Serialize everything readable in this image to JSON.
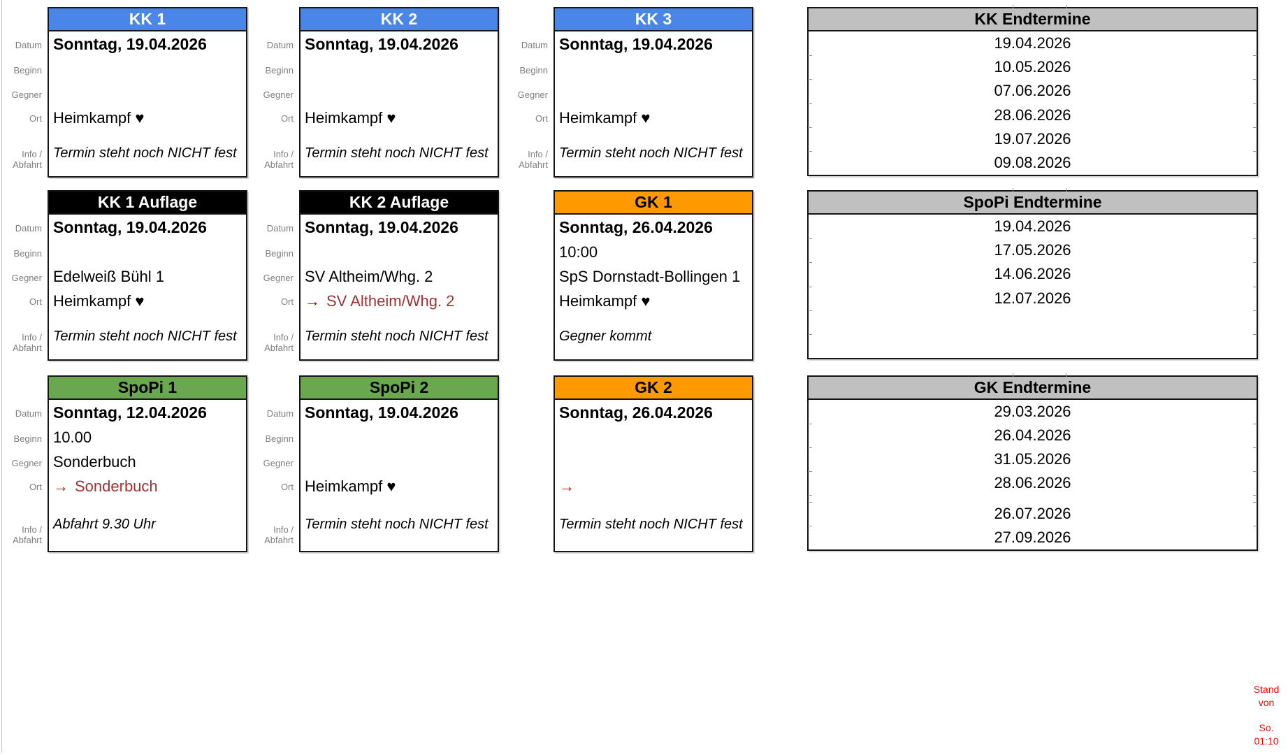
{
  "labels": {
    "datum": "Datum",
    "beginn": "Beginn",
    "gegner": "Gegner",
    "ort": "Ort",
    "info_line1": "Info /",
    "info_line2": "Abfahrt"
  },
  "cards": [
    {
      "title": "KK 1",
      "datum": "Sonntag, 19.04.2026",
      "beginn": "",
      "gegner": "",
      "ort_arrow": "",
      "ort": "Heimkampf ♥",
      "info": "Termin steht noch NICHT fest"
    },
    {
      "title": "KK 2",
      "datum": "Sonntag, 19.04.2026",
      "beginn": "",
      "gegner": "",
      "ort_arrow": "",
      "ort": "Heimkampf ♥",
      "info": "Termin steht noch NICHT fest"
    },
    {
      "title": "KK 3",
      "datum": "Sonntag, 19.04.2026",
      "beginn": "",
      "gegner": "",
      "ort_arrow": "",
      "ort": "Heimkampf ♥",
      "info": "Termin steht noch NICHT fest"
    },
    {
      "title": "KK 1 Auflage",
      "datum": "Sonntag, 19.04.2026",
      "beginn": "",
      "gegner": "Edelweiß Bühl 1",
      "ort_arrow": "",
      "ort": "Heimkampf ♥",
      "info": "Termin steht noch NICHT fest"
    },
    {
      "title": "KK 2 Auflage",
      "datum": "Sonntag, 19.04.2026",
      "beginn": "",
      "gegner": "SV Altheim/Whg. 2",
      "ort_arrow": "→",
      "ort": "SV Altheim/Whg. 2",
      "info": "Termin steht noch NICHT fest"
    },
    {
      "title": "GK 1",
      "datum": "Sonntag, 26.04.2026",
      "beginn": "10:00",
      "gegner": "SpS Dornstadt-Bollingen 1",
      "ort_arrow": "",
      "ort": "Heimkampf ♥",
      "info": "Gegner kommt"
    },
    {
      "title": "SpoPi 1",
      "datum": "Sonntag, 12.04.2026",
      "beginn": "10.00",
      "gegner": "Sonderbuch",
      "ort_arrow": "→",
      "ort": "Sonderbuch",
      "info": "Abfahrt 9.30 Uhr"
    },
    {
      "title": "SpoPi 2",
      "datum": "Sonntag, 19.04.2026",
      "beginn": "",
      "gegner": "",
      "ort_arrow": "",
      "ort": "Heimkampf ♥",
      "info": "Termin steht noch NICHT fest"
    },
    {
      "title": "GK 2",
      "datum": "Sonntag, 26.04.2026",
      "beginn": "",
      "gegner": "",
      "ort_arrow": "→",
      "ort": "",
      "info": "Termin steht noch NICHT fest"
    }
  ],
  "panels": [
    {
      "title": "KK Endtermine",
      "dates": [
        "19.04.2026",
        "10.05.2026",
        "07.06.2026",
        "28.06.2026",
        "19.07.2026",
        "09.08.2026"
      ]
    },
    {
      "title": "SpoPi Endtermine",
      "dates": [
        "19.04.2026",
        "17.05.2026",
        "14.06.2026",
        "12.07.2026"
      ]
    },
    {
      "title": "GK Endtermine",
      "dates": [
        "29.03.2026",
        "26.04.2026",
        "31.05.2026",
        "28.06.2026",
        "26.07.2026",
        "27.09.2026"
      ]
    }
  ],
  "footer": {
    "line1": "Stand von",
    "line2": "So. 01:10"
  },
  "colors": {
    "blue": "#4a86e8",
    "header_black": "#000000",
    "green": "#6aa84f",
    "orange": "#ff9900",
    "header_gray": "#c0c0c0",
    "stand_red": "#ff0000",
    "away_dark_red": "#9c3334",
    "arrow_red": "#c00000",
    "label_gray": "#7f7f7f"
  }
}
